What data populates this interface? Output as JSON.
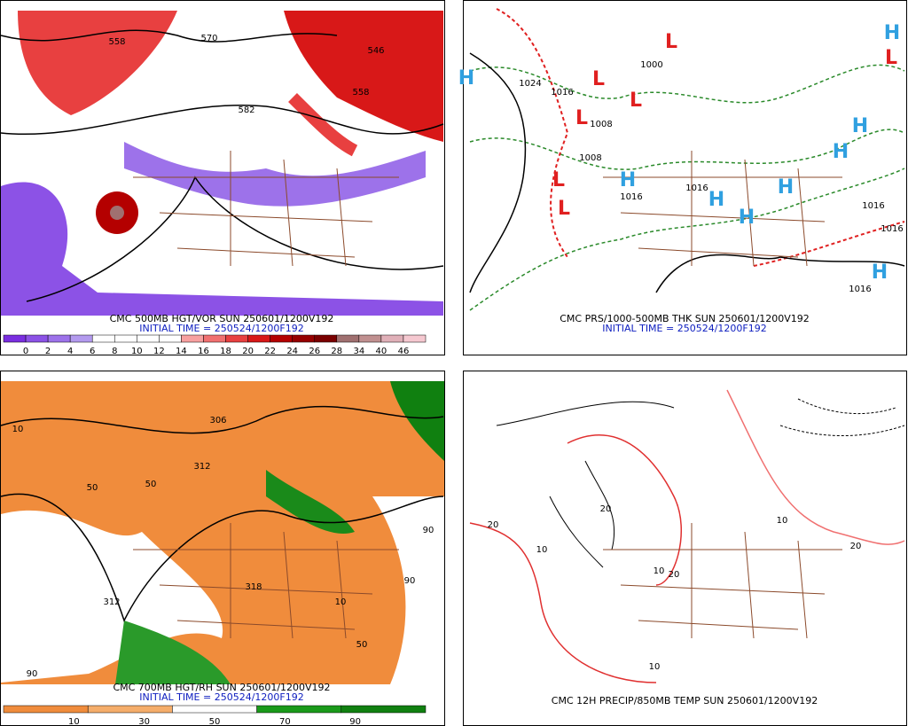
{
  "panels": [
    {
      "caption": "CMC 500MB HGT/VOR SUN 250601/1200V192",
      "initial_time": "INITIAL TIME = 250524/1200F192",
      "colorbar": {
        "labels": [
          "0",
          "2",
          "4",
          "6",
          "8",
          "10",
          "12",
          "14",
          "16",
          "18",
          "20",
          "22",
          "24",
          "26",
          "28",
          "34",
          "40",
          "46"
        ],
        "colors": [
          "#7a2ee0",
          "#8c52e6",
          "#9d72ea",
          "#b39aee",
          "#ffffff",
          "#ffffff",
          "#ffffff",
          "#ffffff",
          "#f7a0a0",
          "#f07070",
          "#e84040",
          "#d81818",
          "#b40000",
          "#960000",
          "#7a0000",
          "#a07070",
          "#c09090",
          "#e0b0b8",
          "#f5c8d0"
        ]
      },
      "labels": [
        "558",
        "570",
        "546",
        "558",
        "582"
      ]
    },
    {
      "caption": "CMC PRS/1000-500MB THK SUN 250601/1200V192",
      "initial_time": "INITIAL TIME = 250524/1200F192",
      "labels": [
        "1024",
        "1016",
        "1008",
        "1000",
        "1008",
        "1016",
        "1016",
        "1016",
        "1016",
        "1016"
      ],
      "lows": [
        "L",
        "L",
        "L",
        "L",
        "L",
        "L",
        "L"
      ],
      "highs": [
        "H",
        "H",
        "H",
        "H",
        "H",
        "H",
        "H",
        "H",
        "H"
      ]
    },
    {
      "caption": "CMC 700MB HGT/RH SUN 250601/1200V192",
      "initial_time": "INITIAL TIME = 250524/1200F192",
      "colorbar": {
        "labels": [
          "10",
          "30",
          "50",
          "70",
          "90"
        ],
        "colors": [
          "#f08c3c",
          "#f5ad6a",
          "#ffffff",
          "#1a9a1a",
          "#108010"
        ]
      },
      "labels": [
        "306",
        "312",
        "318",
        "312",
        "50",
        "50",
        "90",
        "10",
        "90",
        "50",
        "10",
        "90"
      ]
    },
    {
      "caption": "CMC 12H PRECIP/850MB TEMP SUN 250601/1200V192",
      "labels": [
        "20",
        "10",
        "20",
        "10",
        "20",
        "10",
        "20",
        "10"
      ]
    }
  ]
}
